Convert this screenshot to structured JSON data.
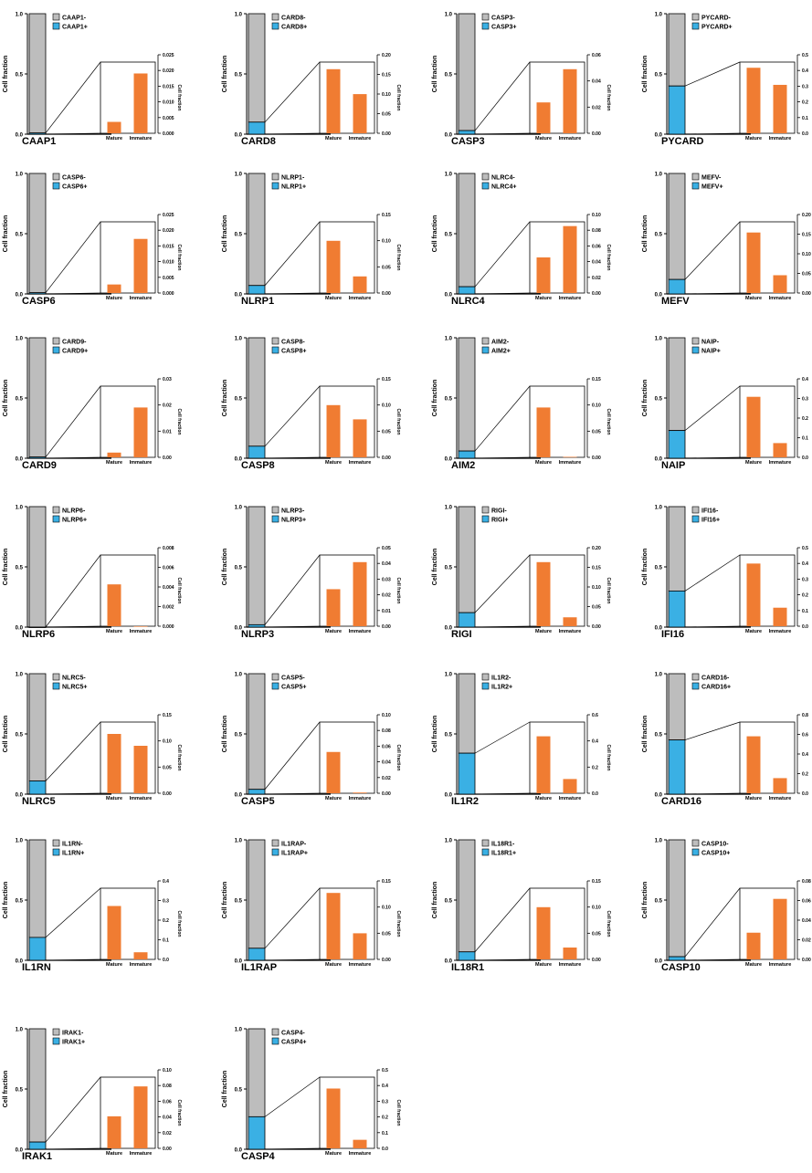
{
  "colors": {
    "negative": "#bdbdbd",
    "positive": "#3ab0e4",
    "inset_bar": "#f07c32",
    "axis": "#000000"
  },
  "chart_data": [
    {
      "type": "bar",
      "gene": "CAAP1",
      "legend": [
        "CAAP1-",
        "CAAP1+"
      ],
      "ylabel": "Cell fraction",
      "ylim": [
        0,
        1
      ],
      "yticks": [
        "0.0",
        "0.5",
        "1.0"
      ],
      "stacked": {
        "negative": 0.99,
        "positive": 0.01
      },
      "inset": {
        "type": "bar",
        "categories": [
          "Mature",
          "Immature"
        ],
        "values": [
          0.004,
          0.021
        ],
        "ylabel": "Cell fraction",
        "ylim": [
          0,
          0.025
        ],
        "yticks": [
          "0.000",
          "0.005",
          "0.010",
          "0.015",
          "0.020",
          "0.025"
        ]
      }
    },
    {
      "type": "bar",
      "gene": "CARD8",
      "legend": [
        "CARD8-",
        "CARD8+"
      ],
      "ylabel": "Cell fraction",
      "ylim": [
        0,
        1
      ],
      "yticks": [
        "0.0",
        "0.5",
        "1.0"
      ],
      "stacked": {
        "negative": 0.9,
        "positive": 0.1
      },
      "inset": {
        "type": "bar",
        "categories": [
          "Mature",
          "Immature"
        ],
        "values": [
          0.18,
          0.11
        ],
        "ylabel": "Cell fraction",
        "ylim": [
          0,
          0.2
        ],
        "yticks": [
          "0.00",
          "0.05",
          "0.10",
          "0.15",
          "0.20"
        ]
      }
    },
    {
      "type": "bar",
      "gene": "CASP3",
      "legend": [
        "CASP3-",
        "CASP3+"
      ],
      "ylabel": "Cell fraction",
      "ylim": [
        0,
        1
      ],
      "yticks": [
        "0.0",
        "0.5",
        "1.0"
      ],
      "stacked": {
        "negative": 0.97,
        "positive": 0.03
      },
      "inset": {
        "type": "bar",
        "categories": [
          "Mature",
          "Immature"
        ],
        "values": [
          0.026,
          0.054
        ],
        "ylabel": "Cell fraction",
        "ylim": [
          0,
          0.06
        ],
        "yticks": [
          "0.00",
          "0.02",
          "0.04",
          "0.06"
        ]
      }
    },
    {
      "type": "bar",
      "gene": "PYCARD",
      "legend": [
        "PYCARD-",
        "PYCARD+"
      ],
      "ylabel": "Cell fraction",
      "ylim": [
        0,
        1
      ],
      "yticks": [
        "0.0",
        "0.5",
        "1.0"
      ],
      "stacked": {
        "negative": 0.6,
        "positive": 0.4
      },
      "inset": {
        "type": "bar",
        "categories": [
          "Mature",
          "Immature"
        ],
        "values": [
          0.46,
          0.34
        ],
        "ylabel": "Cell fraction",
        "ylim": [
          0,
          0.5
        ],
        "yticks": [
          "0.0",
          "0.1",
          "0.2",
          "0.3",
          "0.4",
          "0.5"
        ]
      }
    },
    {
      "type": "bar",
      "gene": "CASP6",
      "legend": [
        "CASP6-",
        "CASP6+"
      ],
      "ylabel": "Cell fraction",
      "ylim": [
        0,
        1
      ],
      "yticks": [
        "0.0",
        "0.5",
        "1.0"
      ],
      "stacked": {
        "negative": 0.99,
        "positive": 0.01
      },
      "inset": {
        "type": "bar",
        "categories": [
          "Mature",
          "Immature"
        ],
        "values": [
          0.003,
          0.019
        ],
        "ylabel": "Cell fraction",
        "ylim": [
          0,
          0.025
        ],
        "yticks": [
          "0.000",
          "0.005",
          "0.010",
          "0.015",
          "0.020",
          "0.025"
        ]
      }
    },
    {
      "type": "bar",
      "gene": "NLRP1",
      "legend": [
        "NLRP1-",
        "NLRP1+"
      ],
      "ylabel": "Cell fraction",
      "ylim": [
        0,
        1
      ],
      "yticks": [
        "0.0",
        "0.5",
        "1.0"
      ],
      "stacked": {
        "negative": 0.93,
        "positive": 0.07
      },
      "inset": {
        "type": "bar",
        "categories": [
          "Mature",
          "Immature"
        ],
        "values": [
          0.11,
          0.035
        ],
        "ylabel": "Cell fraction",
        "ylim": [
          0,
          0.15
        ],
        "yticks": [
          "0.00",
          "0.05",
          "0.10",
          "0.15"
        ]
      }
    },
    {
      "type": "bar",
      "gene": "NLRC4",
      "legend": [
        "NLRC4-",
        "NLRC4+"
      ],
      "ylabel": "Cell fraction",
      "ylim": [
        0,
        1
      ],
      "yticks": [
        "0.0",
        "0.5",
        "1.0"
      ],
      "stacked": {
        "negative": 0.94,
        "positive": 0.06
      },
      "inset": {
        "type": "bar",
        "categories": [
          "Mature",
          "Immature"
        ],
        "values": [
          0.05,
          0.094
        ],
        "ylabel": "Cell fraction",
        "ylim": [
          0,
          0.1
        ],
        "yticks": [
          "0.00",
          "0.02",
          "0.04",
          "0.06",
          "0.08",
          "0.10"
        ]
      }
    },
    {
      "type": "bar",
      "gene": "MEFV",
      "legend": [
        "MEFV-",
        "MEFV+"
      ],
      "ylabel": "Cell fraction",
      "ylim": [
        0,
        1
      ],
      "yticks": [
        "0.0",
        "0.5",
        "1.0"
      ],
      "stacked": {
        "negative": 0.88,
        "positive": 0.12
      },
      "inset": {
        "type": "bar",
        "categories": [
          "Mature",
          "Immature"
        ],
        "values": [
          0.17,
          0.05
        ],
        "ylabel": "Cell fraction",
        "ylim": [
          0,
          0.2
        ],
        "yticks": [
          "0.00",
          "0.05",
          "0.10",
          "0.15",
          "0.20"
        ]
      }
    },
    {
      "type": "bar",
      "gene": "CARD9",
      "legend": [
        "CARD9-",
        "CARD9+"
      ],
      "ylabel": "Cell fraction",
      "ylim": [
        0,
        1
      ],
      "yticks": [
        "0.0",
        "0.5",
        "1.0"
      ],
      "stacked": {
        "negative": 0.99,
        "positive": 0.01
      },
      "inset": {
        "type": "bar",
        "categories": [
          "Mature",
          "Immature"
        ],
        "values": [
          0.002,
          0.021
        ],
        "ylabel": "Cell fraction",
        "ylim": [
          0,
          0.03
        ],
        "yticks": [
          "0.00",
          "0.01",
          "0.02",
          "0.03"
        ]
      }
    },
    {
      "type": "bar",
      "gene": "CASP8",
      "legend": [
        "CASP8-",
        "CASP8+"
      ],
      "ylabel": "Cell fraction",
      "ylim": [
        0,
        1
      ],
      "yticks": [
        "0.0",
        "0.5",
        "1.0"
      ],
      "stacked": {
        "negative": 0.9,
        "positive": 0.1
      },
      "inset": {
        "type": "bar",
        "categories": [
          "Mature",
          "Immature"
        ],
        "values": [
          0.11,
          0.08
        ],
        "ylabel": "Cell fraction",
        "ylim": [
          0,
          0.15
        ],
        "yticks": [
          "0.00",
          "0.05",
          "0.10",
          "0.15"
        ]
      }
    },
    {
      "type": "bar",
      "gene": "AIM2",
      "legend": [
        "AIM2-",
        "AIM2+"
      ],
      "ylabel": "Cell fraction",
      "ylim": [
        0,
        1
      ],
      "yticks": [
        "0.0",
        "0.5",
        "1.0"
      ],
      "stacked": {
        "negative": 0.94,
        "positive": 0.06
      },
      "inset": {
        "type": "bar",
        "categories": [
          "Mature",
          "Immature"
        ],
        "values": [
          0.105,
          0.001
        ],
        "ylabel": "Cell fraction",
        "ylim": [
          0,
          0.15
        ],
        "yticks": [
          "0.00",
          "0.05",
          "0.10",
          "0.15"
        ]
      }
    },
    {
      "type": "bar",
      "gene": "NAIP",
      "legend": [
        "NAIP-",
        "NAIP+"
      ],
      "ylabel": "Cell fraction",
      "ylim": [
        0,
        1
      ],
      "yticks": [
        "0.0",
        "0.5",
        "1.0"
      ],
      "stacked": {
        "negative": 0.77,
        "positive": 0.23
      },
      "inset": {
        "type": "bar",
        "categories": [
          "Mature",
          "Immature"
        ],
        "values": [
          0.34,
          0.08
        ],
        "ylabel": "Cell fraction",
        "ylim": [
          0,
          0.4
        ],
        "yticks": [
          "0.0",
          "0.1",
          "0.2",
          "0.3",
          "0.4"
        ]
      }
    },
    {
      "type": "bar",
      "gene": "NLRP6",
      "legend": [
        "NLRP6-",
        "NLRP6+"
      ],
      "ylabel": "Cell fraction",
      "ylim": [
        0,
        1
      ],
      "yticks": [
        "0.0",
        "0.5",
        "1.0"
      ],
      "stacked": {
        "negative": 1.0,
        "positive": 0.0
      },
      "inset": {
        "type": "bar",
        "categories": [
          "Mature",
          "Immature"
        ],
        "values": [
          0.0047,
          0.0
        ],
        "ylabel": "Cell fraction",
        "ylim": [
          0,
          0.008
        ],
        "yticks": [
          "0.000",
          "0.002",
          "0.004",
          "0.006",
          "0.008"
        ]
      }
    },
    {
      "type": "bar",
      "gene": "NLRP3",
      "legend": [
        "NLRP3-",
        "NLRP3+"
      ],
      "ylabel": "Cell fraction",
      "ylim": [
        0,
        1
      ],
      "yticks": [
        "0.0",
        "0.5",
        "1.0"
      ],
      "stacked": {
        "negative": 0.98,
        "positive": 0.02
      },
      "inset": {
        "type": "bar",
        "categories": [
          "Mature",
          "Immature"
        ],
        "values": [
          0.026,
          0.045
        ],
        "ylabel": "Cell fraction",
        "ylim": [
          0,
          0.05
        ],
        "yticks": [
          "0.00",
          "0.01",
          "0.02",
          "0.03",
          "0.04",
          "0.05"
        ]
      }
    },
    {
      "type": "bar",
      "gene": "RIGI",
      "legend": [
        "RIGI-",
        "RIGI+"
      ],
      "ylabel": "Cell fraction",
      "ylim": [
        0,
        1
      ],
      "yticks": [
        "0.0",
        "0.5",
        "1.0"
      ],
      "stacked": {
        "negative": 0.88,
        "positive": 0.12
      },
      "inset": {
        "type": "bar",
        "categories": [
          "Mature",
          "Immature"
        ],
        "values": [
          0.18,
          0.025
        ],
        "ylabel": "Cell fraction",
        "ylim": [
          0,
          0.2
        ],
        "yticks": [
          "0.00",
          "0.05",
          "0.10",
          "0.15",
          "0.20"
        ]
      }
    },
    {
      "type": "bar",
      "gene": "IFI16",
      "legend": [
        "IFI16-",
        "IFI16+"
      ],
      "ylabel": "Cell fraction",
      "ylim": [
        0,
        1
      ],
      "yticks": [
        "0.0",
        "0.5",
        "1.0"
      ],
      "stacked": {
        "negative": 0.7,
        "positive": 0.3
      },
      "inset": {
        "type": "bar",
        "categories": [
          "Mature",
          "Immature"
        ],
        "values": [
          0.44,
          0.13
        ],
        "ylabel": "Cell fraction",
        "ylim": [
          0,
          0.5
        ],
        "yticks": [
          "0.0",
          "0.1",
          "0.2",
          "0.3",
          "0.4",
          "0.5"
        ]
      }
    },
    {
      "type": "bar",
      "gene": "NLRC5",
      "legend": [
        "NLRC5-",
        "NLRC5+"
      ],
      "ylabel": "Cell fraction",
      "ylim": [
        0,
        1
      ],
      "yticks": [
        "0.0",
        "0.5",
        "1.0"
      ],
      "stacked": {
        "negative": 0.89,
        "positive": 0.11
      },
      "inset": {
        "type": "bar",
        "categories": [
          "Mature",
          "Immature"
        ],
        "values": [
          0.125,
          0.1
        ],
        "ylabel": "Cell fraction",
        "ylim": [
          0,
          0.15
        ],
        "yticks": [
          "0.00",
          "0.05",
          "0.10",
          "0.15"
        ]
      }
    },
    {
      "type": "bar",
      "gene": "CASP5",
      "legend": [
        "CASP5-",
        "CASP5+"
      ],
      "ylabel": "Cell fraction",
      "ylim": [
        0,
        1
      ],
      "yticks": [
        "0.0",
        "0.5",
        "1.0"
      ],
      "stacked": {
        "negative": 0.96,
        "positive": 0.04
      },
      "inset": {
        "type": "bar",
        "categories": [
          "Mature",
          "Immature"
        ],
        "values": [
          0.058,
          0.001
        ],
        "ylabel": "Cell fraction",
        "ylim": [
          0,
          0.1
        ],
        "yticks": [
          "0.00",
          "0.02",
          "0.04",
          "0.06",
          "0.08",
          "0.10"
        ]
      }
    },
    {
      "type": "bar",
      "gene": "IL1R2",
      "legend": [
        "IL1R2-",
        "IL1R2+"
      ],
      "ylabel": "Cell fraction",
      "ylim": [
        0,
        1
      ],
      "yticks": [
        "0.0",
        "0.5",
        "1.0"
      ],
      "stacked": {
        "negative": 0.66,
        "positive": 0.34
      },
      "inset": {
        "type": "bar",
        "categories": [
          "Mature",
          "Immature"
        ],
        "values": [
          0.48,
          0.12
        ],
        "ylabel": "Cell fraction",
        "ylim": [
          0,
          0.6
        ],
        "yticks": [
          "0.0",
          "0.2",
          "0.4",
          "0.6"
        ]
      }
    },
    {
      "type": "bar",
      "gene": "CARD16",
      "legend": [
        "CARD16-",
        "CARD16+"
      ],
      "ylabel": "Cell fraction",
      "ylim": [
        0,
        1
      ],
      "yticks": [
        "0.0",
        "0.5",
        "1.0"
      ],
      "stacked": {
        "negative": 0.55,
        "positive": 0.45
      },
      "inset": {
        "type": "bar",
        "categories": [
          "Mature",
          "Immature"
        ],
        "values": [
          0.64,
          0.17
        ],
        "ylabel": "Cell fraction",
        "ylim": [
          0,
          0.8
        ],
        "yticks": [
          "0.0",
          "0.2",
          "0.4",
          "0.6",
          "0.8"
        ]
      }
    },
    {
      "type": "bar",
      "gene": "IL1RN",
      "legend": [
        "IL1RN-",
        "IL1RN+"
      ],
      "ylabel": "Cell fraction",
      "ylim": [
        0,
        1
      ],
      "yticks": [
        "0.0",
        "0.5",
        "1.0"
      ],
      "stacked": {
        "negative": 0.81,
        "positive": 0.19
      },
      "inset": {
        "type": "bar",
        "categories": [
          "Mature",
          "Immature"
        ],
        "values": [
          0.3,
          0.04
        ],
        "ylabel": "Cell fraction",
        "ylim": [
          0,
          0.4
        ],
        "yticks": [
          "0.0",
          "0.1",
          "0.2",
          "0.3",
          "0.4"
        ]
      }
    },
    {
      "type": "bar",
      "gene": "IL1RAP",
      "legend": [
        "IL1RAP-",
        "IL1RAP+"
      ],
      "ylabel": "Cell fraction",
      "ylim": [
        0,
        1
      ],
      "yticks": [
        "0.0",
        "0.5",
        "1.0"
      ],
      "stacked": {
        "negative": 0.9,
        "positive": 0.1
      },
      "inset": {
        "type": "bar",
        "categories": [
          "Mature",
          "Immature"
        ],
        "values": [
          0.14,
          0.055
        ],
        "ylabel": "Cell fraction",
        "ylim": [
          0,
          0.15
        ],
        "yticks": [
          "0.00",
          "0.05",
          "0.10",
          "0.15"
        ]
      }
    },
    {
      "type": "bar",
      "gene": "IL18R1",
      "legend": [
        "IL18R1-",
        "IL18R1+"
      ],
      "ylabel": "Cell fraction",
      "ylim": [
        0,
        1
      ],
      "yticks": [
        "0.0",
        "0.5",
        "1.0"
      ],
      "stacked": {
        "negative": 0.93,
        "positive": 0.07
      },
      "inset": {
        "type": "bar",
        "categories": [
          "Mature",
          "Immature"
        ],
        "values": [
          0.11,
          0.025
        ],
        "ylabel": "Cell fraction",
        "ylim": [
          0,
          0.15
        ],
        "yticks": [
          "0.00",
          "0.05",
          "0.10",
          "0.15"
        ]
      }
    },
    {
      "type": "bar",
      "gene": "CASP10",
      "legend": [
        "CASP10-",
        "CASP10+"
      ],
      "ylabel": "Cell fraction",
      "ylim": [
        0,
        1
      ],
      "yticks": [
        "0.0",
        "0.5",
        "1.0"
      ],
      "stacked": {
        "negative": 0.97,
        "positive": 0.03
      },
      "inset": {
        "type": "bar",
        "categories": [
          "Mature",
          "Immature"
        ],
        "values": [
          0.03,
          0.068
        ],
        "ylabel": "Cell fraction",
        "ylim": [
          0,
          0.08
        ],
        "yticks": [
          "0.00",
          "0.02",
          "0.04",
          "0.06",
          "0.08"
        ]
      }
    },
    {
      "type": "bar",
      "gene": "IRAK1",
      "legend": [
        "IRAK1-",
        "IRAK1+"
      ],
      "ylabel": "Cell fraction",
      "ylim": [
        0,
        1
      ],
      "yticks": [
        "0.0",
        "0.5",
        "1.0"
      ],
      "stacked": {
        "negative": 0.94,
        "positive": 0.06
      },
      "inset": {
        "type": "bar",
        "categories": [
          "Mature",
          "Immature"
        ],
        "values": [
          0.045,
          0.087
        ],
        "ylabel": "Cell fraction",
        "ylim": [
          0,
          0.1
        ],
        "yticks": [
          "0.00",
          "0.02",
          "0.04",
          "0.06",
          "0.08",
          "0.10"
        ]
      }
    },
    {
      "type": "bar",
      "gene": "CASP4",
      "legend": [
        "CASP4-",
        "CASP4+"
      ],
      "ylabel": "Cell fraction",
      "ylim": [
        0,
        1
      ],
      "yticks": [
        "0.0",
        "0.5",
        "1.0"
      ],
      "stacked": {
        "negative": 0.73,
        "positive": 0.27
      },
      "inset": {
        "type": "bar",
        "categories": [
          "Mature",
          "Immature"
        ],
        "values": [
          0.42,
          0.06
        ],
        "ylabel": "Cell fraction",
        "ylim": [
          0,
          0.5
        ],
        "yticks": [
          "0.0",
          "0.1",
          "0.2",
          "0.3",
          "0.4",
          "0.5"
        ]
      }
    }
  ]
}
